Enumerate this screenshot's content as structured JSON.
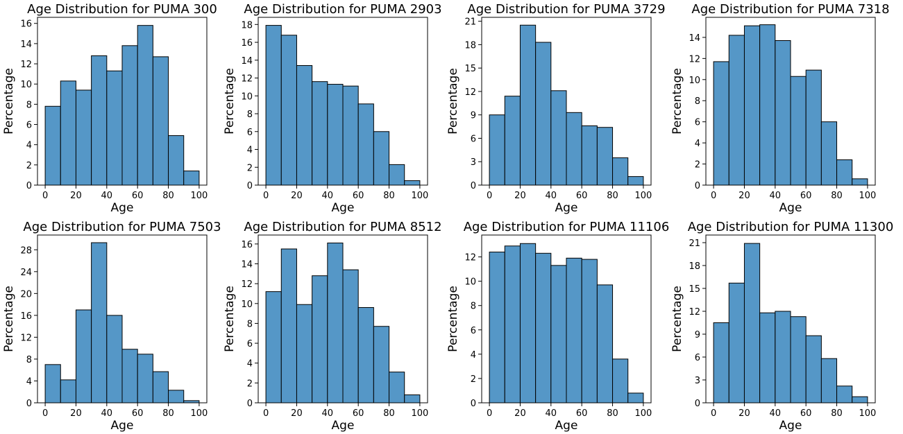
{
  "chart_data": [
    {
      "type": "histogram",
      "title": "Age Distribution for PUMA 300",
      "x_label": "Age",
      "y_label": "Percentage",
      "color": "#5597c7",
      "bins": [
        0,
        10,
        20,
        30,
        40,
        50,
        60,
        70,
        80,
        90,
        100
      ],
      "values": [
        7.8,
        10.3,
        9.4,
        12.8,
        11.3,
        13.8,
        15.8,
        12.7,
        4.9,
        1.4
      ],
      "xlim": [
        -5,
        105
      ],
      "xticks": [
        0,
        20,
        40,
        60,
        80,
        100
      ],
      "ylim": [
        0,
        16.6
      ],
      "yticks": [
        0,
        2,
        4,
        6,
        8,
        10,
        12,
        14,
        16
      ]
    },
    {
      "type": "histogram",
      "title": "Age Distribution for PUMA 2903",
      "x_label": "Age",
      "y_label": "Percentage",
      "color": "#5597c7",
      "bins": [
        0,
        10,
        20,
        30,
        40,
        50,
        60,
        70,
        80,
        90,
        100
      ],
      "values": [
        17.9,
        16.8,
        13.4,
        11.6,
        11.3,
        11.1,
        9.1,
        6.0,
        2.3,
        0.5
      ],
      "xlim": [
        -5,
        105
      ],
      "xticks": [
        0,
        20,
        40,
        60,
        80,
        100
      ],
      "ylim": [
        0,
        18.8
      ],
      "yticks": [
        0,
        2,
        4,
        6,
        8,
        10,
        12,
        14,
        16,
        18
      ]
    },
    {
      "type": "histogram",
      "title": "Age Distribution for PUMA 3729",
      "x_label": "Age",
      "y_label": "Percentage",
      "color": "#5597c7",
      "bins": [
        0,
        10,
        20,
        30,
        40,
        50,
        60,
        70,
        80,
        90,
        100
      ],
      "values": [
        9.0,
        11.4,
        20.5,
        18.3,
        12.1,
        9.3,
        7.6,
        7.4,
        3.5,
        1.1
      ],
      "xlim": [
        -5,
        105
      ],
      "xticks": [
        0,
        20,
        40,
        60,
        80,
        100
      ],
      "ylim": [
        0,
        21.5
      ],
      "yticks": [
        0,
        3,
        6,
        9,
        12,
        15,
        18,
        21
      ]
    },
    {
      "type": "histogram",
      "title": "Age Distribution for PUMA 7318",
      "x_label": "Age",
      "y_label": "Percentage",
      "color": "#5597c7",
      "bins": [
        0,
        10,
        20,
        30,
        40,
        50,
        60,
        70,
        80,
        90,
        100
      ],
      "values": [
        11.7,
        14.2,
        15.1,
        15.2,
        13.7,
        10.3,
        10.9,
        6.0,
        2.4,
        0.6
      ],
      "xlim": [
        -5,
        105
      ],
      "xticks": [
        0,
        20,
        40,
        60,
        80,
        100
      ],
      "ylim": [
        0,
        15.9
      ],
      "yticks": [
        0,
        2,
        4,
        6,
        8,
        10,
        12,
        14
      ]
    },
    {
      "type": "histogram",
      "title": "Age Distribution for PUMA 7503",
      "x_label": "Age",
      "y_label": "Percentage",
      "color": "#5597c7",
      "bins": [
        0,
        10,
        20,
        30,
        40,
        50,
        60,
        70,
        80,
        90,
        100
      ],
      "values": [
        7.0,
        4.2,
        17.0,
        29.3,
        16.0,
        9.8,
        8.9,
        5.7,
        2.3,
        0.4
      ],
      "xlim": [
        -5,
        105
      ],
      "xticks": [
        0,
        20,
        40,
        60,
        80,
        100
      ],
      "ylim": [
        0,
        30.7
      ],
      "yticks": [
        0,
        4,
        8,
        12,
        16,
        20,
        24,
        28
      ]
    },
    {
      "type": "histogram",
      "title": "Age Distribution for PUMA 8512",
      "x_label": "Age",
      "y_label": "Percentage",
      "color": "#5597c7",
      "bins": [
        0,
        10,
        20,
        30,
        40,
        50,
        60,
        70,
        80,
        90,
        100
      ],
      "values": [
        11.2,
        15.5,
        9.9,
        12.8,
        16.1,
        13.4,
        9.6,
        7.7,
        3.1,
        0.8
      ],
      "xlim": [
        -5,
        105
      ],
      "xticks": [
        0,
        20,
        40,
        60,
        80,
        100
      ],
      "ylim": [
        0,
        16.9
      ],
      "yticks": [
        0,
        2,
        4,
        6,
        8,
        10,
        12,
        14,
        16
      ]
    },
    {
      "type": "histogram",
      "title": "Age Distribution for PUMA 11106",
      "x_label": "Age",
      "y_label": "Percentage",
      "color": "#5597c7",
      "bins": [
        0,
        10,
        20,
        30,
        40,
        50,
        60,
        70,
        80,
        90,
        100
      ],
      "values": [
        12.4,
        12.9,
        13.1,
        12.3,
        11.3,
        11.9,
        11.8,
        9.7,
        3.6,
        0.8
      ],
      "xlim": [
        -5,
        105
      ],
      "xticks": [
        0,
        20,
        40,
        60,
        80,
        100
      ],
      "ylim": [
        0,
        13.8
      ],
      "yticks": [
        0,
        2,
        4,
        6,
        8,
        10,
        12
      ]
    },
    {
      "type": "histogram",
      "title": "Age Distribution for PUMA 11300",
      "x_label": "Age",
      "y_label": "Percentage",
      "color": "#5597c7",
      "bins": [
        0,
        10,
        20,
        30,
        40,
        50,
        60,
        70,
        80,
        90,
        100
      ],
      "values": [
        10.5,
        15.7,
        20.9,
        11.8,
        12.0,
        11.3,
        8.8,
        5.8,
        2.2,
        0.8
      ],
      "xlim": [
        -5,
        105
      ],
      "xticks": [
        0,
        20,
        40,
        60,
        80,
        100
      ],
      "ylim": [
        0,
        22
      ],
      "yticks": [
        0,
        3,
        6,
        9,
        12,
        15,
        18,
        21
      ]
    }
  ]
}
